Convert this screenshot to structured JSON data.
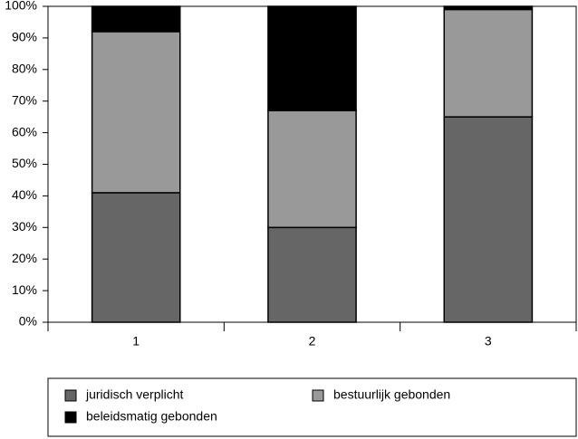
{
  "chart_data": {
    "type": "stacked-bar",
    "categories": [
      "1",
      "2",
      "3"
    ],
    "series": [
      {
        "name": "juridisch verplicht",
        "color": "#666666",
        "values": [
          41,
          30,
          65
        ]
      },
      {
        "name": "bestuurlijk gebonden",
        "color": "#999999",
        "values": [
          51,
          37,
          34
        ]
      },
      {
        "name": "beleidsmatig gebonden",
        "color": "#000000",
        "values": [
          8,
          33,
          1
        ]
      }
    ],
    "ylim": [
      0,
      100
    ],
    "yticks": [
      {
        "value": 0,
        "label": "0%"
      },
      {
        "value": 10,
        "label": "10%"
      },
      {
        "value": 20,
        "label": "20%"
      },
      {
        "value": 30,
        "label": "30%"
      },
      {
        "value": 40,
        "label": "40%"
      },
      {
        "value": 50,
        "label": "50%"
      },
      {
        "value": 60,
        "label": "60%"
      },
      {
        "value": 70,
        "label": "70%"
      },
      {
        "value": 80,
        "label": "80%"
      },
      {
        "value": 90,
        "label": "90%"
      },
      {
        "value": 100,
        "label": "100%"
      }
    ],
    "grid": false
  }
}
